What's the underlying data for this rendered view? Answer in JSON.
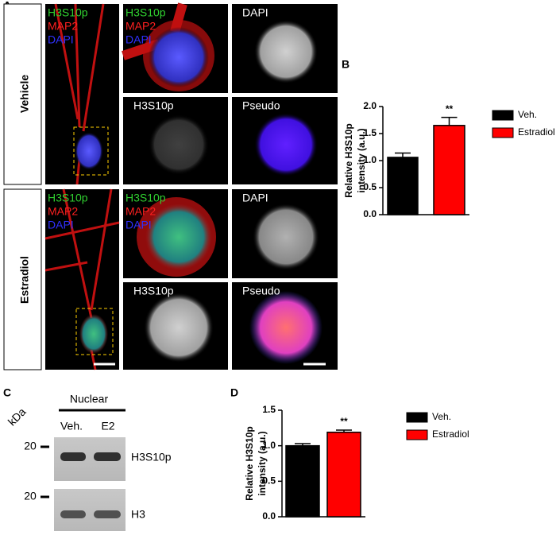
{
  "panel_labels": [
    "A",
    "B",
    "C",
    "D"
  ],
  "panel_a": {
    "rows": [
      {
        "label": "Vehicle",
        "channels": [
          "H3S10p",
          "MAP2",
          "DAPI"
        ],
        "tiles": [
          "DAPI",
          "H3S10p",
          "Pseudo"
        ]
      },
      {
        "label": "Estradiol",
        "channels": [
          "H3S10p",
          "MAP2",
          "DAPI"
        ],
        "tiles": [
          "DAPI",
          "H3S10p",
          "Pseudo"
        ]
      }
    ]
  },
  "chart_data": [
    {
      "type": "bar",
      "ylabel": [
        "Relative H3S10p",
        "intensity (a.u.)"
      ],
      "annotation": "**",
      "series": [
        {
          "name": "Veh.",
          "color": "#000000",
          "values": [
            1.06
          ],
          "errors": [
            0.08
          ]
        },
        {
          "name": "Estradiol",
          "color": "#ff0000",
          "values": [
            1.65
          ],
          "errors": [
            0.15
          ]
        }
      ],
      "ylim": [
        0,
        2
      ],
      "yticks": [
        {
          "value": 0,
          "label": "0.0"
        },
        {
          "value": 0.5,
          "label": "0.5"
        },
        {
          "value": 1,
          "label": "1.0"
        },
        {
          "value": 1.5,
          "label": "1.5"
        },
        {
          "value": 2,
          "label": "2.0"
        }
      ],
      "grid": false
    },
    {
      "type": "bar",
      "ylabel": [
        "Relative H3S10p",
        "intensity (a.u.)"
      ],
      "annotation": "**",
      "series": [
        {
          "name": "Veh.",
          "color": "#000000",
          "values": [
            1.0
          ],
          "errors": [
            0.03
          ]
        },
        {
          "name": "Estradiol",
          "color": "#ff0000",
          "values": [
            1.19
          ],
          "errors": [
            0.03
          ]
        }
      ],
      "ylim": [
        0,
        1.5
      ],
      "yticks": [
        {
          "value": 0,
          "label": "0.0"
        },
        {
          "value": 0.5,
          "label": "0.5"
        },
        {
          "value": 1,
          "label": "1.0"
        },
        {
          "value": 1.5,
          "label": "1.5"
        }
      ],
      "grid": false
    }
  ],
  "panel_c": {
    "header": "Nuclear",
    "unit": "kDa",
    "lanes": [
      "Veh.",
      "E2"
    ],
    "markers": [
      "20",
      "20"
    ],
    "bands": [
      "H3S10p",
      "H3"
    ]
  }
}
